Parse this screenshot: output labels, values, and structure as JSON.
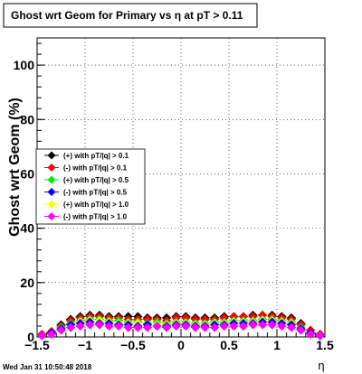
{
  "title": "Ghost wrt Geom for Primary vs   η at pT > 0.11",
  "footer": "Wed Jan 31 10:50:48 2018",
  "chart_data": {
    "type": "scatter",
    "xlabel": "η",
    "ylabel": "Ghost wrt Geom (%)",
    "xlim": [
      -1.5,
      1.5
    ],
    "ylim": [
      0,
      110
    ],
    "xticks": [
      -1.5,
      -1,
      -0.5,
      0,
      0.5,
      1,
      1.5
    ],
    "xtick_labels": [
      "−1.5",
      "−1",
      "−0.5",
      "0",
      "0.5",
      "1",
      "1.5"
    ],
    "yticks": [
      0,
      20,
      40,
      60,
      80,
      100
    ],
    "ytick_labels": [
      "0",
      "20",
      "40",
      "60",
      "80",
      "100"
    ],
    "grid": true,
    "legend_position": "left-middle",
    "x": [
      -1.45,
      -1.35,
      -1.25,
      -1.15,
      -1.05,
      -0.95,
      -0.85,
      -0.75,
      -0.65,
      -0.55,
      -0.45,
      -0.35,
      -0.25,
      -0.15,
      -0.05,
      0.05,
      0.15,
      0.25,
      0.35,
      0.45,
      0.55,
      0.65,
      0.75,
      0.85,
      0.95,
      1.05,
      1.15,
      1.25,
      1.35,
      1.45
    ],
    "series": [
      {
        "name": "(+) with pT/|q| > 0.1",
        "color": "#000000",
        "values": [
          1.0,
          2.0,
          4.5,
          6.5,
          7.5,
          8.0,
          8.0,
          7.5,
          7.5,
          7.5,
          7.5,
          7.0,
          7.0,
          7.0,
          7.5,
          7.5,
          7.0,
          7.0,
          7.0,
          7.5,
          7.5,
          7.5,
          8.0,
          8.0,
          8.0,
          7.5,
          7.0,
          5.0,
          2.5,
          1.0
        ]
      },
      {
        "name": "(-) with pT/|q| > 0.1",
        "color": "#ff0000",
        "values": [
          1.0,
          2.0,
          4.0,
          6.0,
          7.0,
          7.5,
          7.5,
          7.0,
          7.0,
          6.5,
          6.5,
          6.5,
          6.5,
          6.0,
          7.0,
          7.0,
          6.5,
          6.5,
          6.5,
          7.0,
          7.5,
          7.5,
          7.5,
          8.0,
          7.5,
          7.0,
          6.5,
          4.5,
          2.5,
          1.0
        ]
      },
      {
        "name": "(+) with pT/|q| > 0.5",
        "color": "#00ee00",
        "values": [
          0.5,
          1.5,
          3.5,
          5.0,
          6.0,
          6.5,
          6.5,
          6.0,
          6.0,
          5.5,
          5.5,
          5.0,
          5.5,
          5.0,
          5.5,
          5.5,
          5.0,
          5.0,
          5.5,
          5.5,
          6.0,
          6.0,
          6.0,
          6.5,
          6.5,
          6.0,
          5.5,
          3.5,
          1.5,
          0.5
        ]
      },
      {
        "name": "(-) with pT/|q| > 0.5",
        "color": "#0000ff",
        "values": [
          0.5,
          1.5,
          3.0,
          4.5,
          5.0,
          5.5,
          5.0,
          5.0,
          4.5,
          4.5,
          4.0,
          4.5,
          4.0,
          4.0,
          4.5,
          4.5,
          4.0,
          4.0,
          4.5,
          4.5,
          5.0,
          5.0,
          5.0,
          5.5,
          5.5,
          5.0,
          4.5,
          3.0,
          1.5,
          0.5
        ]
      },
      {
        "name": "(+) with pT/|q| > 1.0",
        "color": "#ffff00",
        "values": [
          0.5,
          1.0,
          3.0,
          4.5,
          5.5,
          6.0,
          6.0,
          5.5,
          5.0,
          5.0,
          5.0,
          4.5,
          4.5,
          4.5,
          5.0,
          5.0,
          4.5,
          4.5,
          5.0,
          5.0,
          5.5,
          5.5,
          5.5,
          6.0,
          6.0,
          5.5,
          5.0,
          3.0,
          1.5,
          0.5
        ]
      },
      {
        "name": "(-) with pT/|q| > 1.0",
        "color": "#ff00ff",
        "values": [
          0.5,
          1.0,
          2.5,
          3.5,
          4.0,
          4.5,
          4.5,
          4.0,
          4.0,
          3.5,
          3.5,
          3.5,
          4.0,
          3.5,
          4.0,
          4.0,
          3.5,
          3.5,
          3.5,
          4.0,
          4.0,
          4.0,
          4.5,
          4.5,
          4.5,
          4.0,
          3.5,
          2.5,
          1.0,
          0.5
        ]
      }
    ]
  }
}
